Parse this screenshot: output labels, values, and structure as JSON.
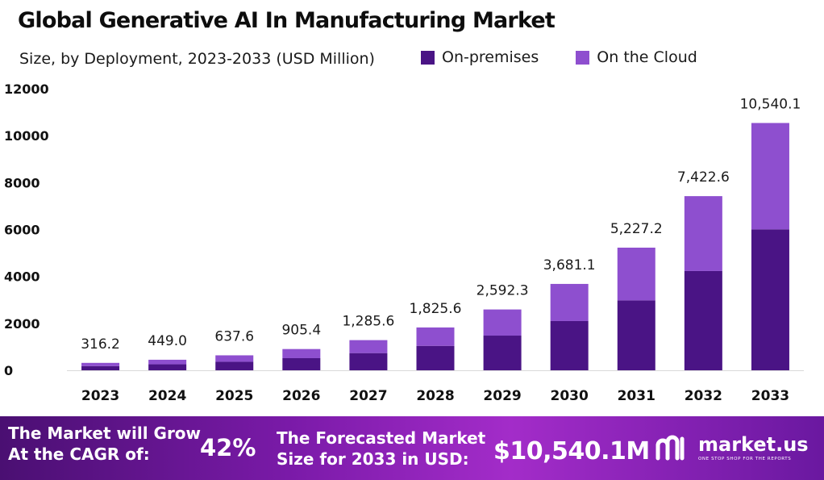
{
  "header": {
    "title": "Global Generative AI In Manufacturing Market",
    "subtitle": "Size, by Deployment, 2023-2033 (USD Million)"
  },
  "legend": [
    {
      "label": "On-premises",
      "color": "#4a1485"
    },
    {
      "label": "On the Cloud",
      "color": "#8e4fcf"
    }
  ],
  "chart_data": {
    "type": "bar",
    "stacked": true,
    "categories": [
      "2023",
      "2024",
      "2025",
      "2026",
      "2027",
      "2028",
      "2029",
      "2030",
      "2031",
      "2032",
      "2033"
    ],
    "series": [
      {
        "name": "On-premises",
        "color": "#4a1485",
        "values": [
          180,
          256,
          363,
          516,
          733,
          1041,
          1478,
          2098,
          2980,
          4231,
          6008
        ]
      },
      {
        "name": "On the Cloud",
        "color": "#8e4fcf",
        "values": [
          136.2,
          193.0,
          274.6,
          389.4,
          552.6,
          784.6,
          1114.3,
          1583.1,
          2247.2,
          3191.6,
          4532.1
        ]
      }
    ],
    "totals": [
      "316.2",
      "449.0",
      "637.6",
      "905.4",
      "1,285.6",
      "1,825.6",
      "2,592.3",
      "3,681.1",
      "5,227.2",
      "7,422.6",
      "10,540.1"
    ],
    "total_values": [
      316.2,
      449.0,
      637.6,
      905.4,
      1285.6,
      1825.6,
      2592.3,
      3681.1,
      5227.2,
      7422.6,
      10540.1
    ],
    "yticks": [
      "0",
      "2000",
      "4000",
      "6000",
      "8000",
      "10000",
      "12000"
    ],
    "ylim": [
      0,
      12000
    ],
    "grid": false,
    "legend_position": "top-right"
  },
  "banner": {
    "cagr_line1": "The Market will Grow",
    "cagr_line2": "At the CAGR of:",
    "cagr_value": "42%",
    "forecast_line1": "The Forecasted Market",
    "forecast_line2": "Size for 2033 in USD:",
    "forecast_value": "$10,540.1M",
    "brand": "market.us",
    "tagline": "ONE STOP SHOP FOR THE REPORTS"
  }
}
